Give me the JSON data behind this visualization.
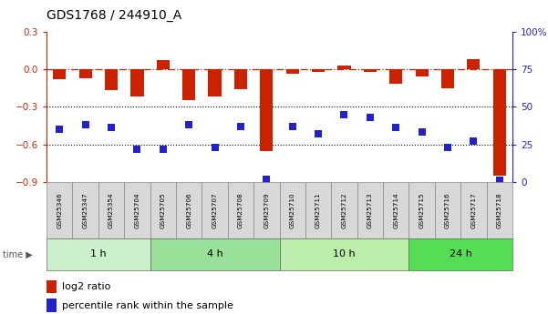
{
  "title": "GDS1768 / 244910_A",
  "samples": [
    "GSM25346",
    "GSM25347",
    "GSM25354",
    "GSM25704",
    "GSM25705",
    "GSM25706",
    "GSM25707",
    "GSM25708",
    "GSM25709",
    "GSM25710",
    "GSM25711",
    "GSM25712",
    "GSM25713",
    "GSM25714",
    "GSM25715",
    "GSM25716",
    "GSM25717",
    "GSM25718"
  ],
  "log2_ratio": [
    -0.08,
    -0.07,
    -0.17,
    -0.22,
    0.07,
    -0.25,
    -0.22,
    -0.16,
    -0.65,
    -0.04,
    -0.02,
    0.03,
    -0.02,
    -0.12,
    -0.06,
    -0.15,
    0.08,
    -0.85
  ],
  "percentile": [
    35,
    38,
    36,
    22,
    22,
    38,
    23,
    37,
    2,
    37,
    32,
    45,
    43,
    36,
    33,
    23,
    27,
    1
  ],
  "groups": [
    {
      "label": "1 h",
      "start": 0,
      "end": 4,
      "color": "#ccf0cc"
    },
    {
      "label": "4 h",
      "start": 4,
      "end": 9,
      "color": "#99e099"
    },
    {
      "label": "10 h",
      "start": 9,
      "end": 14,
      "color": "#bbeeaa"
    },
    {
      "label": "24 h",
      "start": 14,
      "end": 18,
      "color": "#55dd55"
    }
  ],
  "ylim_left": [
    -0.9,
    0.3
  ],
  "ylim_right": [
    0,
    100
  ],
  "yticks_left": [
    0.3,
    0.0,
    -0.3,
    -0.6,
    -0.9
  ],
  "yticks_right": [
    100,
    75,
    50,
    25,
    0
  ],
  "hlines_dotted": [
    -0.3,
    -0.6
  ],
  "hline_dashdot": 0.0,
  "bar_color": "#cc2200",
  "dot_color": "#2222cc",
  "bar_width": 0.5,
  "dot_size": 40,
  "legend_bar_label": "log2 ratio",
  "legend_dot_label": "percentile rank within the sample",
  "background_color": "#ffffff"
}
